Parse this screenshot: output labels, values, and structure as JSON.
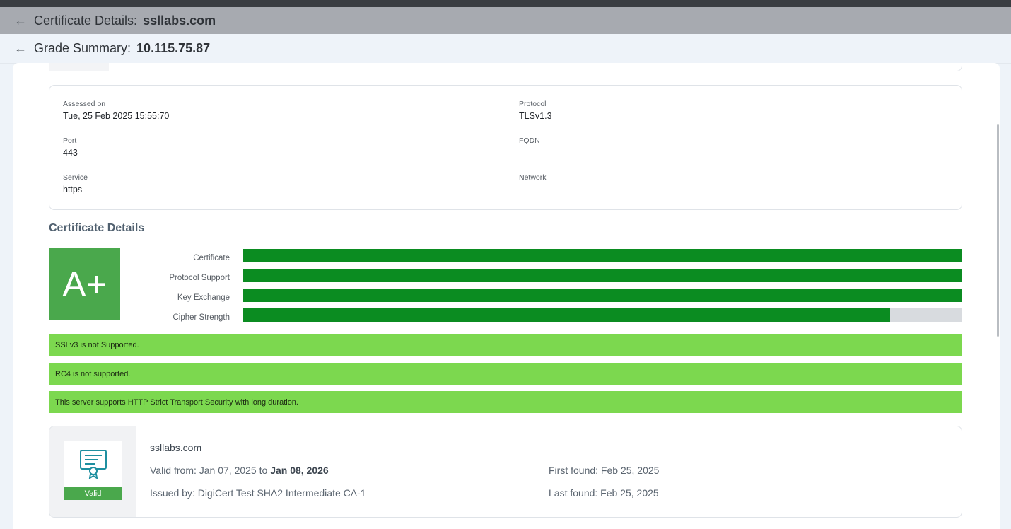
{
  "header": {
    "certificate_label": "Certificate Details:",
    "certificate_value": "ssllabs.com",
    "grade_label": "Grade Summary:",
    "grade_value": "10.115.75.87"
  },
  "info": {
    "assessed_label": "Assessed on",
    "assessed_value": "Tue, 25 Feb 2025 15:55:70",
    "protocol_label": "Protocol",
    "protocol_value": "TLSv1.3",
    "port_label": "Port",
    "port_value": "443",
    "fqdn_label": "FQDN",
    "fqdn_value": "-",
    "service_label": "Service",
    "service_value": "https",
    "network_label": "Network",
    "network_value": "-"
  },
  "certificate_details": {
    "title": "Certificate Details",
    "grade": "A+",
    "grade_color": "#4aa84c",
    "bar_color": "#0b8c21",
    "bars": [
      {
        "label": "Certificate",
        "fraction": 1.0
      },
      {
        "label": "Protocol Support",
        "fraction": 1.0
      },
      {
        "label": "Key Exchange",
        "fraction": 1.0
      },
      {
        "label": "Cipher Strength",
        "fraction": 0.9
      }
    ],
    "notes": [
      "SSLv3 is not Supported.",
      "RC4 is not supported.",
      "This server supports HTTP Strict Transport Security with long duration."
    ],
    "note_color": "#7cd84f"
  },
  "certificate": {
    "domain": "ssllabs.com",
    "valid_from_prefix": "Valid from: Jan 07, 2025 to ",
    "valid_to": "Jan 08, 2026",
    "issued_by": "Issued by: DigiCert Test SHA2 Intermediate CA-1",
    "first_found": "First found: Feb 25, 2025",
    "last_found": "Last found: Feb 25, 2025",
    "status": "Valid",
    "icon": "certificate-icon"
  }
}
